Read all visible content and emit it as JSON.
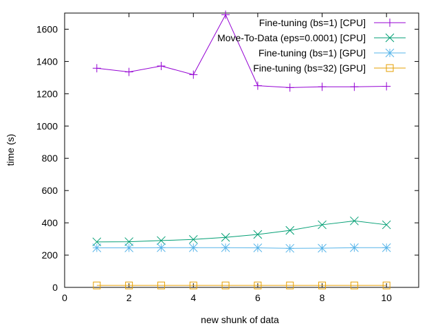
{
  "chart_data": {
    "type": "line",
    "title": "",
    "xlabel": "new shunk of data",
    "ylabel": "time (s)",
    "xlim": [
      0,
      11
    ],
    "ylim": [
      0,
      1700
    ],
    "x_ticks": [
      0,
      2,
      4,
      6,
      8,
      10
    ],
    "y_ticks": [
      0,
      200,
      400,
      600,
      800,
      1000,
      1200,
      1400,
      1600
    ],
    "legend_position": "top-right",
    "grid": false,
    "x": [
      1,
      2,
      3,
      4,
      5,
      6,
      7,
      8,
      9,
      10
    ],
    "series": [
      {
        "name": "Fine-tuning (bs=1) [CPU]",
        "color": "#9400d3",
        "marker": "plus",
        "values": [
          1358,
          1335,
          1372,
          1318,
          1690,
          1250,
          1238,
          1243,
          1243,
          1246
        ]
      },
      {
        "name": "Move-To-Data (eps=0.0001) [CPU]",
        "color": "#009e73",
        "marker": "x",
        "values": [
          282,
          283,
          290,
          297,
          310,
          328,
          353,
          388,
          412,
          388
        ]
      },
      {
        "name": "Fine-tuning (bs=1) [GPU]",
        "color": "#56b4e9",
        "marker": "star",
        "values": [
          245,
          245,
          246,
          246,
          246,
          245,
          242,
          243,
          246,
          246
        ]
      },
      {
        "name": "Fine-tuning (bs=32) [GPU]",
        "color": "#e69f00",
        "marker": "square",
        "values": [
          12,
          12,
          12,
          12,
          12,
          12,
          12,
          12,
          12,
          12
        ]
      }
    ]
  }
}
